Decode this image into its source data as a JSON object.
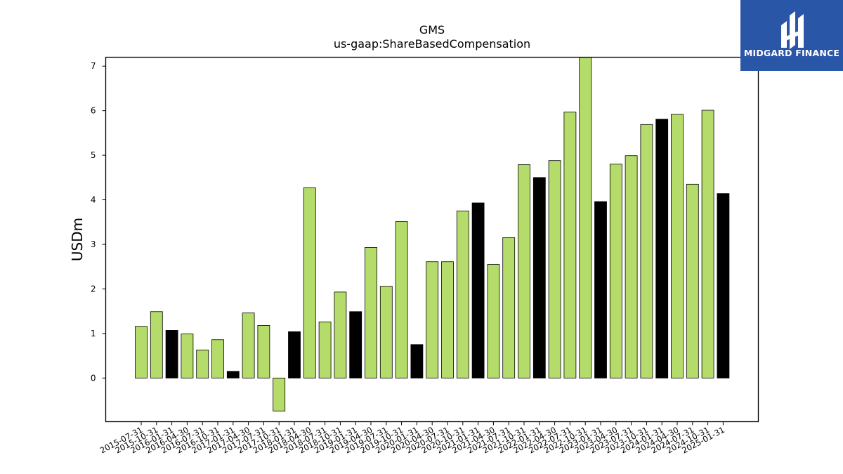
{
  "chart_data": {
    "type": "bar",
    "title": "GMS",
    "subtitle": "us-gaap:ShareBasedCompensation",
    "xlabel": "",
    "ylabel": "USDm",
    "ylim": [
      -0.98,
      7.2
    ],
    "yticks": [
      0,
      1,
      2,
      3,
      4,
      5,
      6,
      7
    ],
    "grid": false,
    "colors": {
      "quarter": "#b5dc6a",
      "fiscal_q4": "#000000",
      "edge": "#000000"
    },
    "categories": [
      "2015-07-31",
      "2015-10-31",
      "2016-01-31",
      "2016-04-30",
      "2016-07-31",
      "2016-10-31",
      "2017-01-31",
      "2017-04-30",
      "2017-07-31",
      "2017-10-31",
      "2018-01-31",
      "2018-04-30",
      "2018-07-31",
      "2018-10-31",
      "2019-01-31",
      "2019-04-30",
      "2019-07-31",
      "2019-10-31",
      "2020-01-31",
      "2020-04-30",
      "2020-07-31",
      "2020-10-31",
      "2021-01-31",
      "2021-04-30",
      "2021-07-31",
      "2021-10-31",
      "2022-01-31",
      "2022-04-30",
      "2022-07-31",
      "2022-10-31",
      "2023-01-31",
      "2023-04-30",
      "2023-07-31",
      "2023-10-31",
      "2024-01-31",
      "2024-04-30",
      "2024-07-31",
      "2024-10-31",
      "2025-01-31"
    ],
    "values": [
      1.16,
      1.49,
      1.07,
      0.99,
      0.63,
      0.86,
      0.15,
      1.46,
      1.18,
      -0.74,
      1.04,
      4.27,
      1.26,
      1.93,
      1.49,
      2.93,
      2.06,
      3.51,
      0.75,
      2.61,
      2.61,
      3.75,
      3.93,
      2.55,
      3.15,
      4.79,
      4.5,
      4.88,
      5.97,
      7.2,
      3.96,
      4.8,
      4.99,
      5.69,
      5.81,
      5.92,
      4.35,
      6.01,
      4.14
    ],
    "highlight": [
      "quarter",
      "quarter",
      "fiscal_q4",
      "quarter",
      "quarter",
      "quarter",
      "fiscal_q4",
      "quarter",
      "quarter",
      "quarter",
      "fiscal_q4",
      "quarter",
      "quarter",
      "quarter",
      "fiscal_q4",
      "quarter",
      "quarter",
      "quarter",
      "fiscal_q4",
      "quarter",
      "quarter",
      "quarter",
      "fiscal_q4",
      "quarter",
      "quarter",
      "quarter",
      "fiscal_q4",
      "quarter",
      "quarter",
      "quarter",
      "fiscal_q4",
      "quarter",
      "quarter",
      "quarter",
      "fiscal_q4",
      "quarter",
      "quarter",
      "quarter",
      "fiscal_q4"
    ]
  },
  "logo": {
    "text": "MIDGARD FINANCE",
    "icon": "midgard-logo-icon",
    "color": "#2a56a8"
  }
}
